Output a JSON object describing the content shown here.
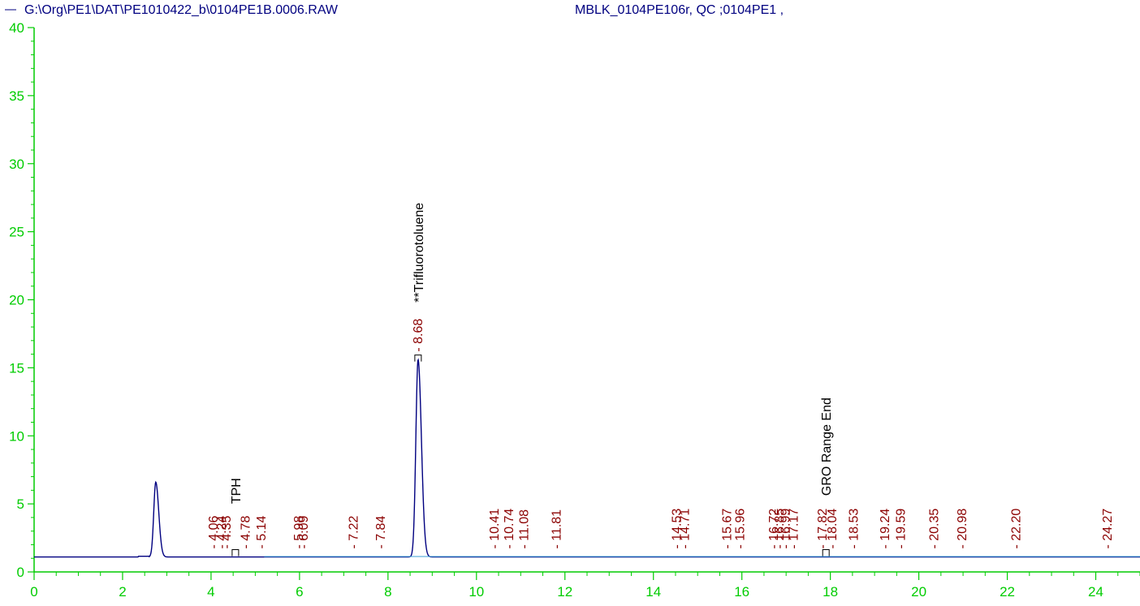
{
  "header": {
    "file_path": "G:\\Org\\PE1\\DAT\\PE1010422_b\\0104PE1B.0006.RAW",
    "sample_info": "MBLK_0104PE106r, QC ;0104PE1 ,"
  },
  "colors": {
    "axis": "#00cc00",
    "trace": "#000080",
    "baseline": "#3b9fd6",
    "peak_label": "#8b0000",
    "annotation": "#000000",
    "header_text": "#000080"
  },
  "chart_data": {
    "type": "line",
    "title": "",
    "xlabel": "",
    "ylabel": "",
    "xlim": [
      0,
      25
    ],
    "ylim": [
      0,
      40
    ],
    "x_ticks": [
      0,
      2,
      4,
      6,
      8,
      10,
      12,
      14,
      16,
      18,
      20,
      22,
      24
    ],
    "y_ticks": [
      0,
      5,
      10,
      15,
      20,
      25,
      30,
      35,
      40
    ],
    "baseline_level": 1.1,
    "peaks": [
      {
        "rt": 2.75,
        "height": 6.6,
        "width": 0.045
      },
      {
        "rt": 8.68,
        "height": 15.6,
        "width": 0.05
      }
    ],
    "peak_labels": [
      {
        "rt": 4.06,
        "text": "4.06"
      },
      {
        "rt": 4.24,
        "text": "4.24"
      },
      {
        "rt": 4.35,
        "text": "4.35"
      },
      {
        "rt": 4.78,
        "text": "4.78"
      },
      {
        "rt": 5.14,
        "text": "5.14"
      },
      {
        "rt": 5.98,
        "text": "5.98"
      },
      {
        "rt": 6.09,
        "text": "6.09"
      },
      {
        "rt": 7.22,
        "text": "7.22"
      },
      {
        "rt": 7.84,
        "text": "7.84"
      },
      {
        "rt": 8.68,
        "text": "8.68"
      },
      {
        "rt": 10.41,
        "text": "10.41"
      },
      {
        "rt": 10.74,
        "text": "10.74"
      },
      {
        "rt": 11.08,
        "text": "11.08"
      },
      {
        "rt": 11.81,
        "text": "11.81"
      },
      {
        "rt": 14.53,
        "text": "14.53"
      },
      {
        "rt": 14.71,
        "text": "14.71"
      },
      {
        "rt": 15.67,
        "text": "15.67"
      },
      {
        "rt": 15.96,
        "text": "15.96"
      },
      {
        "rt": 16.72,
        "text": "16.72"
      },
      {
        "rt": 16.85,
        "text": "16.85"
      },
      {
        "rt": 16.99,
        "text": "16.99"
      },
      {
        "rt": 17.17,
        "text": "17.17"
      },
      {
        "rt": 17.82,
        "text": "17.82"
      },
      {
        "rt": 18.04,
        "text": "18.04"
      },
      {
        "rt": 18.53,
        "text": "18.53"
      },
      {
        "rt": 19.24,
        "text": "19.24"
      },
      {
        "rt": 19.59,
        "text": "19.59"
      },
      {
        "rt": 20.35,
        "text": "20.35"
      },
      {
        "rt": 20.98,
        "text": "20.98"
      },
      {
        "rt": 22.2,
        "text": "22.20"
      },
      {
        "rt": 24.27,
        "text": "24.27"
      }
    ],
    "annotations": [
      {
        "rt": 4.55,
        "y": 5.0,
        "text": "TPH",
        "marker_y": 1.4
      },
      {
        "rt": 8.68,
        "y": 19.8,
        "text": "**Trifluorotoluene",
        "marker_y": 15.7
      },
      {
        "rt": 17.9,
        "y": 5.6,
        "text": "GRO Range End",
        "marker_y": 1.4
      }
    ]
  }
}
